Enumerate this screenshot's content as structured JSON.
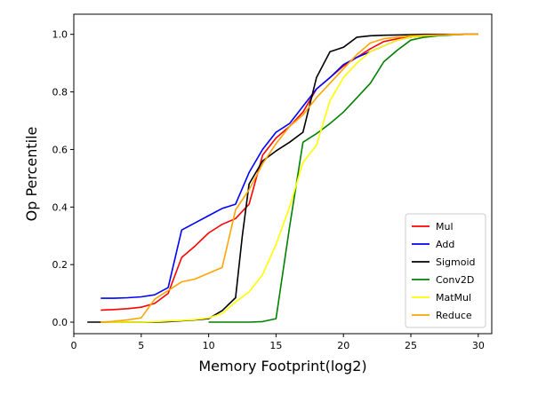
{
  "chart_data": {
    "type": "line",
    "title": "",
    "xlabel": "Memory Footprint(log2)",
    "ylabel": "Op Percentile",
    "xlim": [
      0,
      31
    ],
    "ylim": [
      -0.04,
      1.07
    ],
    "xticks": [
      0,
      5,
      10,
      15,
      20,
      25,
      30
    ],
    "yticks": [
      0.0,
      0.2,
      0.4,
      0.6,
      0.8,
      1.0
    ],
    "xtick_labels": [
      "0",
      "5",
      "10",
      "15",
      "20",
      "25",
      "30"
    ],
    "ytick_labels": [
      "0.0",
      "0.2",
      "0.4",
      "0.6",
      "0.8",
      "1.0"
    ],
    "grid": false,
    "legend_position": "lower-right",
    "series": [
      {
        "name": "Mul",
        "color": "#ff0000",
        "x": [
          2,
          3,
          4,
          5,
          6,
          7,
          8,
          9,
          10,
          11,
          12,
          13,
          14,
          15,
          16,
          17,
          18,
          19,
          20,
          21,
          22,
          23,
          24,
          25,
          26,
          27,
          28,
          29,
          30
        ],
        "y": [
          0.042,
          0.044,
          0.047,
          0.052,
          0.065,
          0.1,
          0.225,
          0.265,
          0.31,
          0.34,
          0.36,
          0.41,
          0.58,
          0.64,
          0.68,
          0.73,
          0.81,
          0.85,
          0.89,
          0.92,
          0.95,
          0.975,
          0.985,
          0.99,
          0.995,
          0.997,
          0.999,
          1.0,
          1.0
        ]
      },
      {
        "name": "Add",
        "color": "#0000ff",
        "x": [
          2,
          3,
          4,
          5,
          6,
          7,
          8,
          9,
          10,
          11,
          12,
          13,
          14,
          15,
          16,
          17,
          18,
          19,
          20,
          21,
          22,
          23,
          24,
          25,
          26,
          27,
          28,
          29,
          30
        ],
        "y": [
          0.083,
          0.083,
          0.085,
          0.088,
          0.095,
          0.12,
          0.32,
          0.345,
          0.37,
          0.395,
          0.41,
          0.52,
          0.6,
          0.66,
          0.69,
          0.75,
          0.81,
          0.85,
          0.895,
          0.92,
          0.94,
          0.96,
          0.98,
          0.99,
          0.995,
          0.998,
          0.999,
          1.0,
          1.0
        ]
      },
      {
        "name": "Sigmoid",
        "color": "#000000",
        "x": [
          1,
          2,
          3,
          4,
          5,
          6,
          7,
          8,
          9,
          10,
          11,
          12,
          12.5,
          13,
          14,
          15,
          16,
          17,
          18,
          19,
          20,
          21,
          22,
          23,
          24,
          25,
          26,
          27,
          28,
          29,
          30
        ],
        "y": [
          0.0,
          0.0,
          0.0,
          0.0,
          0.0,
          0.0,
          0.002,
          0.005,
          0.008,
          0.012,
          0.04,
          0.085,
          0.3,
          0.48,
          0.56,
          0.595,
          0.625,
          0.66,
          0.85,
          0.94,
          0.955,
          0.99,
          0.995,
          0.997,
          0.998,
          0.999,
          1.0,
          1.0,
          1.0,
          1.0,
          1.0
        ]
      },
      {
        "name": "Conv2D",
        "color": "#008000",
        "x": [
          10,
          11,
          12,
          13,
          14,
          15,
          16,
          17,
          18,
          19,
          20,
          21,
          22,
          23,
          24,
          25,
          26,
          27,
          28,
          29,
          30
        ],
        "y": [
          0.0,
          0.0,
          0.0,
          0.0,
          0.002,
          0.012,
          0.33,
          0.625,
          0.655,
          0.69,
          0.73,
          0.78,
          0.83,
          0.905,
          0.945,
          0.98,
          0.99,
          0.995,
          0.998,
          1.0,
          1.0
        ]
      },
      {
        "name": "MatMul",
        "color": "#ffff00",
        "x": [
          2,
          3,
          4,
          5,
          6,
          7,
          8,
          9,
          10,
          11,
          12,
          13,
          14,
          15,
          16,
          17,
          18,
          19,
          20,
          21,
          22,
          23,
          24,
          25,
          26,
          27,
          28,
          29,
          30
        ],
        "y": [
          0.0,
          0.0,
          0.0,
          0.0,
          0.002,
          0.004,
          0.006,
          0.009,
          0.015,
          0.03,
          0.07,
          0.105,
          0.165,
          0.27,
          0.4,
          0.555,
          0.615,
          0.77,
          0.85,
          0.9,
          0.94,
          0.96,
          0.98,
          0.99,
          0.995,
          0.997,
          0.999,
          1.0,
          1.0
        ]
      },
      {
        "name": "Reduce",
        "color": "#ffa500",
        "x": [
          2,
          3,
          4,
          5,
          6,
          7,
          8,
          9,
          10,
          11,
          12,
          13,
          14,
          15,
          16,
          17,
          18,
          19,
          20,
          21,
          22,
          23,
          24,
          25,
          26,
          27,
          28,
          29,
          30
        ],
        "y": [
          0.0,
          0.003,
          0.008,
          0.015,
          0.08,
          0.11,
          0.14,
          0.15,
          0.17,
          0.19,
          0.39,
          0.46,
          0.55,
          0.62,
          0.68,
          0.72,
          0.78,
          0.83,
          0.88,
          0.93,
          0.97,
          0.985,
          0.99,
          0.995,
          0.997,
          0.998,
          0.999,
          1.0,
          1.0
        ]
      }
    ]
  }
}
